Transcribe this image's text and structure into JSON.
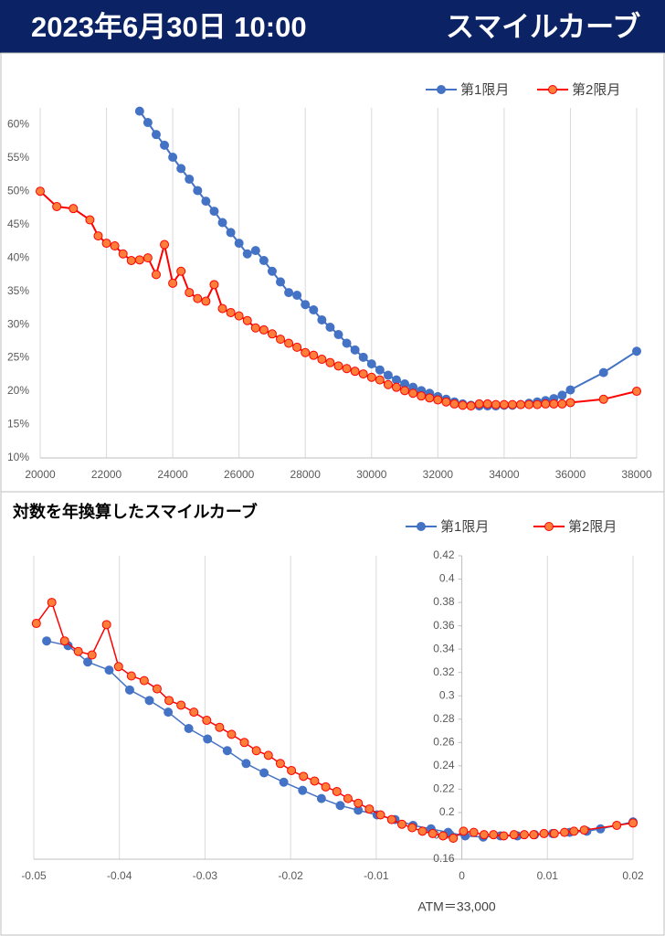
{
  "header": {
    "date": "2023年6月30日 10:00",
    "title": "スマイルカーブ"
  },
  "chart_data": [
    {
      "type": "line",
      "xlim": [
        20000,
        38000
      ],
      "xticks": [
        20000,
        22000,
        24000,
        26000,
        28000,
        30000,
        32000,
        34000,
        36000,
        38000
      ],
      "ylim": [
        10,
        62.5
      ],
      "yticks": [
        {
          "value": 10,
          "label": "10%"
        },
        {
          "value": 15,
          "label": "15%"
        },
        {
          "value": 20,
          "label": "20%"
        },
        {
          "value": 25,
          "label": "25%"
        },
        {
          "value": 30,
          "label": "30%"
        },
        {
          "value": 35,
          "label": "35%"
        },
        {
          "value": 40,
          "label": "40%"
        },
        {
          "value": 45,
          "label": "45%"
        },
        {
          "value": 50,
          "label": "50%"
        },
        {
          "value": 55,
          "label": "55%"
        },
        {
          "value": 60,
          "label": "60%"
        }
      ],
      "grid": true,
      "legend": "top-right",
      "series": [
        {
          "name": "第1限月",
          "color": "#4472c4",
          "marker_fill": "#4472c4",
          "x": [
            23000,
            23250,
            23500,
            23750,
            24000,
            24250,
            24500,
            24750,
            25000,
            25250,
            25500,
            25750,
            26000,
            26250,
            26500,
            26750,
            27000,
            27250,
            27500,
            27750,
            28000,
            28250,
            28500,
            28750,
            29000,
            29250,
            29500,
            29750,
            30000,
            30250,
            30500,
            30750,
            31000,
            31250,
            31500,
            31750,
            32000,
            32250,
            32500,
            32750,
            33000,
            33250,
            33500,
            33750,
            34000,
            34250,
            34500,
            34750,
            35000,
            35250,
            35500,
            35750,
            36000,
            37000,
            38000
          ],
          "values": [
            62.0,
            60.3,
            58.5,
            56.9,
            55.1,
            53.4,
            51.8,
            50.1,
            48.5,
            47.0,
            45.3,
            43.8,
            42.2,
            40.6,
            41.1,
            39.6,
            38.0,
            36.4,
            34.8,
            34.4,
            33.0,
            32.2,
            30.7,
            29.6,
            28.5,
            27.2,
            26.2,
            25.1,
            24.1,
            23.2,
            22.4,
            21.7,
            21.1,
            20.6,
            20.1,
            19.7,
            19.2,
            18.8,
            18.4,
            18.1,
            17.9,
            17.8,
            17.8,
            17.8,
            17.9,
            17.9,
            18.0,
            18.2,
            18.4,
            18.6,
            18.9,
            19.4,
            20.2,
            22.8,
            26.0
          ]
        },
        {
          "name": "第2限月",
          "color": "#ff0000",
          "marker_fill": "#ff7f3a",
          "x": [
            20000,
            20500,
            21000,
            21500,
            21750,
            22000,
            22250,
            22500,
            22750,
            23000,
            23250,
            23500,
            23750,
            24000,
            24250,
            24500,
            24750,
            25000,
            25250,
            25500,
            25750,
            26000,
            26250,
            26500,
            26750,
            27000,
            27250,
            27500,
            27750,
            28000,
            28250,
            28500,
            28750,
            29000,
            29250,
            29500,
            29750,
            30000,
            30250,
            30500,
            30750,
            31000,
            31250,
            31500,
            31750,
            32000,
            32250,
            32500,
            32750,
            33000,
            33250,
            33500,
            33750,
            34000,
            34250,
            34500,
            34750,
            35000,
            35250,
            35500,
            35750,
            36000,
            37000,
            38000
          ],
          "values": [
            50.0,
            47.7,
            47.4,
            45.7,
            43.3,
            42.2,
            41.8,
            40.6,
            39.6,
            39.7,
            40.0,
            37.5,
            42.0,
            36.2,
            38.0,
            34.8,
            33.9,
            33.5,
            36.0,
            32.4,
            31.8,
            31.3,
            30.6,
            29.5,
            29.2,
            28.6,
            27.8,
            27.2,
            26.6,
            25.8,
            25.4,
            24.8,
            24.3,
            23.8,
            23.4,
            23.0,
            22.6,
            22.1,
            21.7,
            21.0,
            20.6,
            20.1,
            19.7,
            19.3,
            19.0,
            18.7,
            18.4,
            18.1,
            17.9,
            17.8,
            18.1,
            18.1,
            18.0,
            18.0,
            18.0,
            18.0,
            18.0,
            18.0,
            18.1,
            18.1,
            18.1,
            18.3,
            18.8,
            20.0
          ]
        }
      ]
    },
    {
      "type": "line",
      "title": "対数を年換算したスマイルカーブ",
      "annotation": "ATM＝33,000",
      "xlim": [
        -0.05,
        0.02
      ],
      "xticks": [
        -0.05,
        -0.04,
        -0.03,
        -0.02,
        -0.01,
        0,
        0.01,
        0.02
      ],
      "ylim": [
        0.16,
        0.42
      ],
      "yticks": [
        0.16,
        0.18,
        0.2,
        0.22,
        0.24,
        0.26,
        0.28,
        0.3,
        0.32,
        0.34,
        0.36,
        0.38,
        0.4,
        0.42
      ],
      "y_axis_at": 0,
      "grid": true,
      "legend": "top-right",
      "series": [
        {
          "name": "第1限月",
          "color": "#4472c4",
          "marker_fill": "#4472c4",
          "x": [
            -0.0485,
            -0.046,
            -0.0437,
            -0.0412,
            -0.0388,
            -0.0365,
            -0.0343,
            -0.0319,
            -0.0297,
            -0.0274,
            -0.0252,
            -0.0231,
            -0.0208,
            -0.0186,
            -0.0164,
            -0.0142,
            -0.0121,
            -0.0099,
            -0.0078,
            -0.0057,
            -0.0036,
            -0.0016,
            0.0004,
            0.0025,
            0.0045,
            0.0065,
            0.0085,
            0.0106,
            0.0126,
            0.0146,
            0.0162,
            0.02
          ],
          "values": [
            0.347,
            0.343,
            0.329,
            0.322,
            0.305,
            0.296,
            0.286,
            0.272,
            0.263,
            0.253,
            0.242,
            0.234,
            0.226,
            0.219,
            0.212,
            0.206,
            0.202,
            0.198,
            0.194,
            0.189,
            0.186,
            0.183,
            0.18,
            0.179,
            0.18,
            0.18,
            0.181,
            0.182,
            0.183,
            0.184,
            0.186,
            0.192
          ]
        },
        {
          "name": "第2限月",
          "color": "#ff0000",
          "marker_fill": "#ff7f3a",
          "x": [
            -0.0497,
            -0.0479,
            -0.0464,
            -0.0448,
            -0.0432,
            -0.0415,
            -0.0401,
            -0.0386,
            -0.0371,
            -0.0356,
            -0.0342,
            -0.0328,
            -0.0313,
            -0.0298,
            -0.0283,
            -0.0269,
            -0.0254,
            -0.024,
            -0.0226,
            -0.0212,
            -0.0199,
            -0.0185,
            -0.0172,
            -0.0159,
            -0.0146,
            -0.0133,
            -0.0121,
            -0.0108,
            -0.0095,
            -0.0082,
            -0.007,
            -0.0058,
            -0.0046,
            -0.0034,
            -0.0022,
            -0.001,
            0.0002,
            0.0014,
            0.0026,
            0.0037,
            0.0049,
            0.0061,
            0.0073,
            0.0084,
            0.0096,
            0.0108,
            0.012,
            0.0131,
            0.0143,
            0.0181,
            0.02
          ],
          "values": [
            0.362,
            0.38,
            0.347,
            0.338,
            0.335,
            0.361,
            0.325,
            0.317,
            0.313,
            0.306,
            0.296,
            0.292,
            0.286,
            0.279,
            0.273,
            0.267,
            0.26,
            0.253,
            0.249,
            0.242,
            0.236,
            0.231,
            0.227,
            0.222,
            0.218,
            0.212,
            0.208,
            0.203,
            0.198,
            0.194,
            0.19,
            0.187,
            0.184,
            0.182,
            0.18,
            0.178,
            0.184,
            0.183,
            0.181,
            0.181,
            0.18,
            0.181,
            0.181,
            0.181,
            0.182,
            0.182,
            0.183,
            0.184,
            0.185,
            0.189,
            0.191
          ]
        }
      ]
    }
  ]
}
